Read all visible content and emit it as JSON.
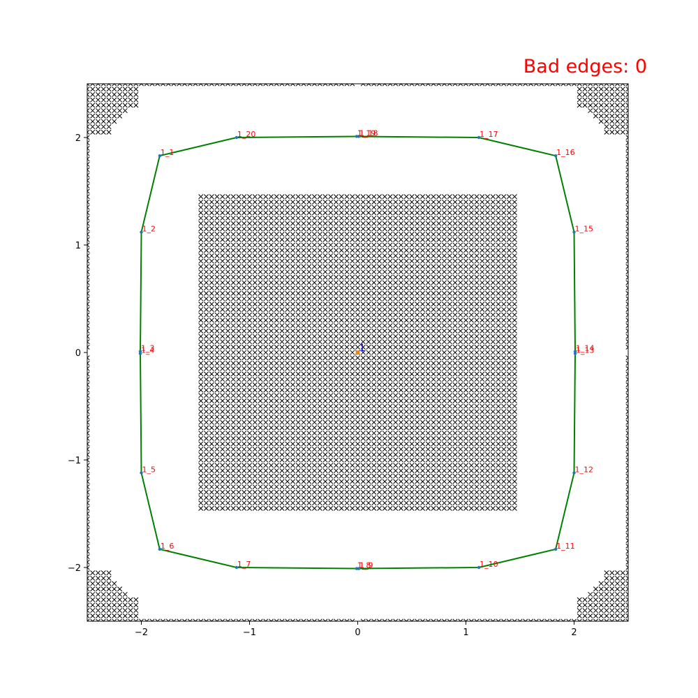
{
  "header": {
    "status_text": "Bad edges: 0"
  },
  "colors": {
    "obstacle": "#000000",
    "path": "#008000",
    "node_label": "#ff0000",
    "node_marker": "#1f77b4",
    "center_label": "#0000ff",
    "center_marker": "#ff7f0e",
    "status": "#ff0000"
  },
  "chart_data": {
    "type": "scatter",
    "title": "",
    "xlabel": "",
    "ylabel": "",
    "xlim": [
      -2.5,
      2.5
    ],
    "ylim": [
      -2.5,
      2.5
    ],
    "x_ticks": [
      -2,
      -1,
      0,
      1,
      2
    ],
    "y_ticks": [
      -2,
      -1,
      0,
      1,
      2
    ],
    "x_tick_labels": [
      "−2",
      "−1",
      "0",
      "1",
      "2"
    ],
    "y_tick_labels": [
      "−2",
      "−1",
      "0",
      "1",
      "2"
    ],
    "grid": false,
    "center": {
      "label": "1",
      "x": 0.0,
      "y": 0.0
    },
    "nodes": [
      {
        "label": "1_1",
        "x": -1.83,
        "y": 1.83
      },
      {
        "label": "1_2",
        "x": -2.0,
        "y": 1.12
      },
      {
        "label": "1_3",
        "x": -2.01,
        "y": 0.01
      },
      {
        "label": "1_4",
        "x": -2.01,
        "y": -0.01
      },
      {
        "label": "1_5",
        "x": -2.0,
        "y": -1.12
      },
      {
        "label": "1_6",
        "x": -1.83,
        "y": -1.83
      },
      {
        "label": "1_7",
        "x": -1.12,
        "y": -2.0
      },
      {
        "label": "1_8",
        "x": -0.01,
        "y": -2.01
      },
      {
        "label": "1_9",
        "x": 0.01,
        "y": -2.01
      },
      {
        "label": "1_10",
        "x": 1.12,
        "y": -2.0
      },
      {
        "label": "1_11",
        "x": 1.83,
        "y": -1.83
      },
      {
        "label": "1_12",
        "x": 2.0,
        "y": -1.12
      },
      {
        "label": "1_13",
        "x": 2.01,
        "y": -0.01
      },
      {
        "label": "1_14",
        "x": 2.01,
        "y": 0.01
      },
      {
        "label": "1_15",
        "x": 2.0,
        "y": 1.12
      },
      {
        "label": "1_16",
        "x": 1.83,
        "y": 1.83
      },
      {
        "label": "1_17",
        "x": 1.12,
        "y": 2.0
      },
      {
        "label": "1_18",
        "x": 0.01,
        "y": 2.01
      },
      {
        "label": "1_19",
        "x": -0.01,
        "y": 2.01
      },
      {
        "label": "1_20",
        "x": -1.12,
        "y": 2.0
      }
    ],
    "path_order": [
      "1_1",
      "1_2",
      "1_3",
      "1_4",
      "1_5",
      "1_6",
      "1_7",
      "1_8",
      "1_9",
      "1_10",
      "1_11",
      "1_12",
      "1_13",
      "1_14",
      "1_15",
      "1_16",
      "1_17",
      "1_18",
      "1_19",
      "1_20",
      "1_1"
    ],
    "obstacle_marker": "x",
    "obstacle_grid_step": 0.05,
    "free_regions": {
      "circles": [
        {
          "x": 0.0,
          "y": 2.0,
          "r": 0.5
        },
        {
          "x": 0.0,
          "y": -2.0,
          "r": 0.5
        },
        {
          "x": 2.0,
          "y": 0.0,
          "r": 0.5
        },
        {
          "x": -2.0,
          "y": 0.0,
          "r": 0.5
        },
        {
          "x": 1.12,
          "y": 2.0,
          "r": 0.5
        },
        {
          "x": -1.12,
          "y": 2.0,
          "r": 0.5
        },
        {
          "x": 1.12,
          "y": -2.0,
          "r": 0.5
        },
        {
          "x": -1.12,
          "y": -2.0,
          "r": 0.5
        },
        {
          "x": 2.0,
          "y": 1.12,
          "r": 0.5
        },
        {
          "x": -2.0,
          "y": 1.12,
          "r": 0.5
        },
        {
          "x": 2.0,
          "y": -1.12,
          "r": 0.5
        },
        {
          "x": -2.0,
          "y": -1.12,
          "r": 0.5
        },
        {
          "x": 1.83,
          "y": 1.83,
          "r": 0.5
        },
        {
          "x": -1.83,
          "y": 1.83,
          "r": 0.5
        },
        {
          "x": 1.83,
          "y": -1.83,
          "r": 0.5
        },
        {
          "x": -1.83,
          "y": -1.83,
          "r": 0.5
        }
      ],
      "rects": [
        {
          "x0": -2.0,
          "x1": 2.0,
          "y0": 1.5,
          "y1": 2.45
        },
        {
          "x0": -2.0,
          "x1": 2.0,
          "y0": -2.45,
          "y1": -1.5
        },
        {
          "x0": 1.5,
          "x1": 2.45,
          "y0": -2.0,
          "y1": 2.0
        },
        {
          "x0": -2.45,
          "x1": -1.5,
          "y0": -2.0,
          "y1": 2.0
        }
      ]
    }
  }
}
